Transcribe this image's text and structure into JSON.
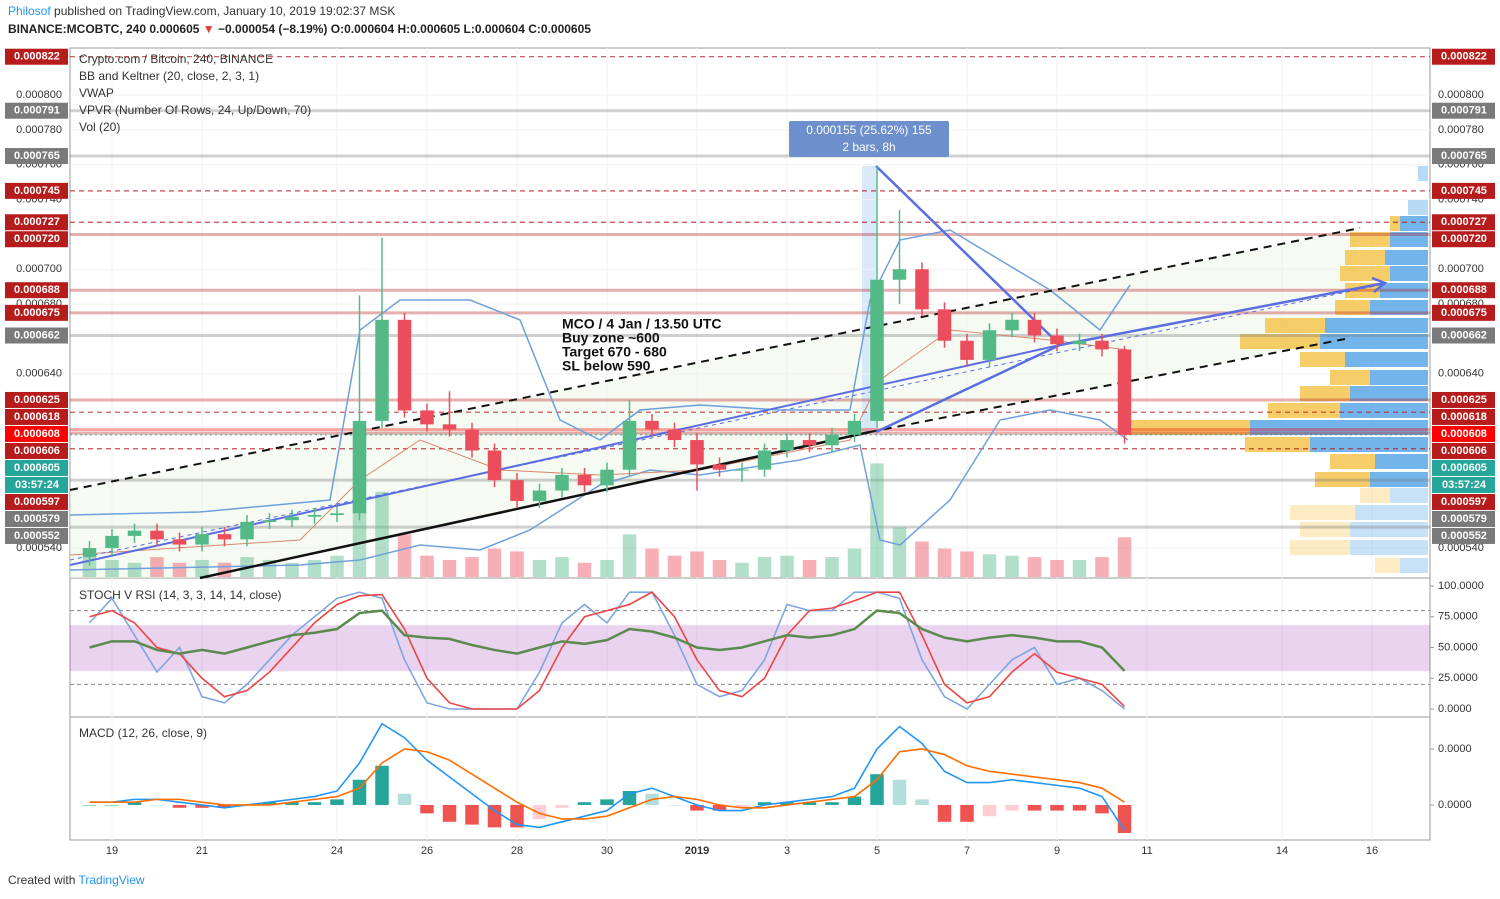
{
  "header": {
    "author": "Philosof",
    "published": "published on TradingView.com, January 10, 2019 19:02:37 MSK",
    "symbol": "BINANCE:MCOBTC, 240",
    "last": "0.000605",
    "change": "−0.000054 (−8.19%)",
    "ohlc": "O:0.000604 H:0.000605 L:0.000604 C:0.000605"
  },
  "legend": [
    "Crypto.com / Bitcoin, 240, BINANCE",
    "BB and Keltner (20, close, 2, 3, 1)",
    "VWAP",
    "VPVR (Number Of Rows, 24, Up/Down, 70)",
    "Vol (20)"
  ],
  "drawings": {
    "measure": [
      "0.000155 (25.62%) 155",
      "2 bars, 8h"
    ],
    "idea": [
      "MCO / 4 Jan / 13.50 UTC",
      "Buy zone ~600",
      "Target 670 - 680",
      "SL below 590"
    ]
  },
  "footer": {
    "text": "Created with",
    "brand": "TradingView"
  },
  "chart_data": [
    {
      "type": "candlestick",
      "up_color": "#53b987",
      "down_color": "#eb4d5c",
      "categories": [
        null,
        "19",
        null,
        null,
        null,
        "21",
        null,
        null,
        null,
        null,
        null,
        "24",
        null,
        null,
        null,
        "26",
        null,
        null,
        null,
        "28",
        null,
        null,
        null,
        "30",
        null,
        null,
        null,
        "2019",
        null,
        null,
        null,
        "3",
        null,
        null,
        null,
        "5",
        null,
        null,
        null,
        "7",
        null,
        null,
        null,
        "9",
        null,
        null,
        null,
        "11",
        null,
        null,
        null,
        null,
        null,
        "14",
        null,
        null,
        null,
        "16",
        null,
        null
      ],
      "open": [
        0.000535,
        0.00054,
        0.000547,
        0.00055,
        0.000545,
        0.000542,
        0.000548,
        0.000545,
        0.000555,
        0.000556,
        0.000558,
        0.000559,
        0.00056,
        0.000613,
        0.000671,
        0.000619,
        0.000611,
        0.000608,
        0.000596,
        0.000579,
        0.000567,
        0.000573,
        0.000582,
        0.000576,
        0.000585,
        0.000613,
        0.000608,
        0.000602,
        0.000588,
        0.000585,
        0.000585,
        0.000596,
        0.000602,
        0.000599,
        0.000605,
        0.000613,
        0.000694,
        0.0007,
        0.000677,
        0.000659,
        0.000648,
        0.000665,
        0.000671,
        0.000662,
        0.000657,
        0.000659,
        0.000654,
        null,
        null,
        null,
        null,
        null,
        null,
        null,
        null,
        null,
        null,
        null,
        null,
        null
      ],
      "high": [
        0.000544,
        0.000551,
        0.000554,
        0.000554,
        0.000549,
        0.000552,
        0.000552,
        0.000559,
        0.00056,
        0.000562,
        0.000563,
        0.000564,
        0.000685,
        0.000718,
        0.000675,
        0.000623,
        0.00063,
        0.000612,
        0.0006,
        0.000583,
        0.000577,
        0.000586,
        0.000586,
        0.000589,
        0.000625,
        0.000617,
        0.000612,
        0.000606,
        0.000592,
        0.000589,
        0.0006,
        0.000606,
        0.000606,
        0.000609,
        0.000617,
        0.000759,
        0.000734,
        0.000704,
        0.000681,
        0.000663,
        0.000669,
        0.000675,
        0.000675,
        0.000666,
        0.000663,
        0.000663,
        0.000656,
        null,
        null,
        null,
        null,
        null,
        null,
        null,
        null,
        null,
        null,
        null,
        null,
        null
      ],
      "low": [
        0.00053,
        0.000536,
        0.000543,
        0.000541,
        0.000538,
        0.000538,
        0.000541,
        0.000541,
        0.000551,
        0.000552,
        0.000554,
        0.000555,
        0.000556,
        0.000609,
        0.000615,
        0.000607,
        0.000604,
        0.000592,
        0.000575,
        0.000563,
        0.000563,
        0.000569,
        0.000572,
        0.000572,
        0.000581,
        0.000604,
        0.000598,
        0.000573,
        0.000581,
        0.000578,
        0.000581,
        0.000592,
        0.000595,
        0.000595,
        0.000601,
        0.000609,
        0.00068,
        0.000673,
        0.000655,
        0.000644,
        0.000644,
        0.000661,
        0.000658,
        0.000653,
        0.000653,
        0.00065,
        0.0006,
        null,
        null,
        null,
        null,
        null,
        null,
        null,
        null,
        null,
        null,
        null,
        null,
        null
      ],
      "close": [
        0.00054,
        0.000547,
        0.00055,
        0.000545,
        0.000542,
        0.000548,
        0.000545,
        0.000555,
        0.000556,
        0.000558,
        0.000559,
        0.00056,
        0.000613,
        0.000671,
        0.000619,
        0.000611,
        0.000608,
        0.000596,
        0.000579,
        0.000567,
        0.000573,
        0.000582,
        0.000576,
        0.000585,
        0.000613,
        0.000608,
        0.000602,
        0.000588,
        0.000585,
        0.000585,
        0.000596,
        0.000602,
        0.000599,
        0.000605,
        0.000613,
        0.000694,
        0.0007,
        0.000677,
        0.000659,
        0.000648,
        0.000665,
        0.000671,
        0.000662,
        0.000657,
        0.000659,
        0.000654,
        0.000605,
        null,
        null,
        null,
        null,
        null,
        null,
        null,
        null,
        null,
        null,
        null,
        null,
        null
      ],
      "volume": [
        15,
        12,
        10,
        14,
        10,
        12,
        10,
        14,
        12,
        10,
        12,
        15,
        100,
        60,
        30,
        15,
        12,
        14,
        20,
        18,
        12,
        14,
        10,
        12,
        30,
        20,
        15,
        18,
        12,
        10,
        14,
        15,
        12,
        14,
        20,
        80,
        35,
        25,
        20,
        18,
        16,
        15,
        14,
        12,
        12,
        14,
        28,
        null,
        null,
        null,
        null,
        null,
        null,
        null,
        null,
        null,
        null,
        null,
        null,
        null
      ],
      "ylim": [
        0.0005234,
        0.000827
      ],
      "yticks": [
        {
          "value": 0.0008,
          "label": "0.000800"
        },
        {
          "value": 0.00078,
          "label": "0.000780"
        },
        {
          "value": 0.00076,
          "label": "0.000760"
        },
        {
          "value": 0.00074,
          "label": "0.000740"
        },
        {
          "value": 0.0007,
          "label": "0.000700"
        },
        {
          "value": 0.00068,
          "label": "0.000680"
        },
        {
          "value": 0.00064,
          "label": "0.000640"
        },
        {
          "value": 0.00054,
          "label": "0.000540"
        }
      ],
      "levels": [
        {
          "value": 0.000822,
          "label": "0.000822",
          "color": "#b71c1c",
          "style": "dashed"
        },
        {
          "value": 0.000791,
          "label": "0.000791",
          "color": "#7a7a7a",
          "style": "solid"
        },
        {
          "value": 0.000765,
          "label": "0.000765",
          "color": "#7a7a7a",
          "style": "solid"
        },
        {
          "value": 0.000745,
          "label": "0.000745",
          "color": "#b71c1c",
          "style": "dashed"
        },
        {
          "value": 0.000727,
          "label": "0.000727",
          "color": "#b71c1c",
          "style": "dashed"
        },
        {
          "value": 0.00072,
          "label": "0.000720",
          "color": "#b71c1c",
          "style": "solid"
        },
        {
          "value": 0.000688,
          "label": "0.000688",
          "color": "#b71c1c",
          "style": "solid"
        },
        {
          "value": 0.000675,
          "label": "0.000675",
          "color": "#b71c1c",
          "style": "solid"
        },
        {
          "value": 0.000662,
          "label": "0.000662",
          "color": "#7a7a7a",
          "style": "solid"
        },
        {
          "value": 0.000625,
          "label": "0.000625",
          "color": "#b71c1c",
          "style": "solid"
        },
        {
          "value": 0.000618,
          "label": "0.000618",
          "color": "#b71c1c",
          "style": "dashed"
        },
        {
          "value": 0.000608,
          "label": "0.000608",
          "color": "#ff0000",
          "style": "solid"
        },
        {
          "value": 0.000606,
          "label": "0.000606",
          "color": "#b71c1c",
          "style": "solid"
        },
        {
          "value": 0.000605,
          "label": "0.000605",
          "color": "#26a69a",
          "style": "dotted",
          "countdown": "03:57:24"
        },
        {
          "value": 0.000597,
          "label": "0.000597",
          "color": "#b71c1c",
          "style": "dashed"
        },
        {
          "value": 0.000579,
          "label": "0.000579",
          "color": "#7a7a7a",
          "style": "solid"
        },
        {
          "value": 0.000552,
          "label": "0.000552",
          "color": "#7a7a7a",
          "style": "solid"
        }
      ]
    },
    {
      "type": "line",
      "title": "STOCH V RSI (14, 3, 3, 14, 14, close)",
      "series": [
        {
          "color": "#7ea6e0",
          "values": [
            70,
            90,
            60,
            30,
            50,
            10,
            5,
            20,
            40,
            60,
            75,
            90,
            95,
            90,
            40,
            5,
            0,
            0,
            0,
            0,
            30,
            70,
            85,
            70,
            95,
            95,
            60,
            20,
            10,
            15,
            40,
            85,
            80,
            80,
            95,
            95,
            90,
            40,
            10,
            0,
            20,
            40,
            50,
            20,
            25,
            15,
            0,
            null,
            null,
            null,
            null,
            null,
            null,
            null,
            null,
            null,
            null,
            null,
            null,
            null
          ]
        },
        {
          "color": "#ef4444",
          "values": [
            75,
            80,
            70,
            50,
            45,
            25,
            10,
            15,
            30,
            50,
            70,
            85,
            92,
            93,
            65,
            25,
            5,
            0,
            0,
            0,
            15,
            50,
            75,
            80,
            85,
            95,
            75,
            40,
            15,
            10,
            25,
            60,
            80,
            82,
            88,
            95,
            95,
            60,
            20,
            5,
            10,
            30,
            45,
            30,
            25,
            20,
            2,
            null,
            null,
            null,
            null,
            null,
            null,
            null,
            null,
            null,
            null,
            null,
            null,
            null
          ]
        },
        {
          "color": "#5b8a4e",
          "values": [
            50,
            55,
            55,
            48,
            45,
            48,
            45,
            50,
            55,
            60,
            62,
            65,
            78,
            80,
            60,
            58,
            57,
            52,
            48,
            45,
            50,
            55,
            53,
            56,
            65,
            63,
            58,
            50,
            48,
            50,
            55,
            60,
            58,
            60,
            65,
            80,
            78,
            65,
            58,
            55,
            58,
            60,
            58,
            55,
            55,
            50,
            31,
            null,
            null,
            null,
            null,
            null,
            null,
            null,
            null,
            null,
            null,
            null,
            null,
            null
          ]
        }
      ],
      "band": [
        31,
        68
      ],
      "guides": [
        80,
        20
      ],
      "ylim": [
        -5.7,
        106.5
      ],
      "yticks": [
        {
          "value": 100,
          "label": "100.0000"
        },
        {
          "value": 75,
          "label": "75.0000"
        },
        {
          "value": 50,
          "label": "50.0000"
        },
        {
          "value": 25,
          "label": "25.0000"
        },
        {
          "value": 0,
          "label": "0.0000"
        }
      ]
    },
    {
      "type": "line",
      "title": "MACD (12, 26, close, 9)",
      "series": [
        {
          "color": "#2196f3",
          "values": [
            1e-06,
            1e-06,
            2e-06,
            2e-06,
            1e-06,
            0,
            -1e-06,
            0,
            1e-06,
            2e-06,
            3e-06,
            5e-06,
            1.5e-05,
            2.9e-05,
            2.4e-05,
            1.6e-05,
            1e-05,
            4e-06,
            -2e-06,
            -7e-06,
            -8e-06,
            -6e-06,
            -4e-06,
            -2e-06,
            4e-06,
            6e-06,
            3e-06,
            0,
            -2e-06,
            -2e-06,
            0,
            1e-06,
            2e-06,
            3e-06,
            6e-06,
            2e-05,
            2.8e-05,
            2.2e-05,
            1.2e-05,
            8e-06,
            8e-06,
            9e-06,
            8e-06,
            7e-06,
            6e-06,
            3e-06,
            -9e-06,
            null,
            null,
            null,
            null,
            null,
            null,
            null,
            null,
            null,
            null,
            null,
            null,
            null
          ]
        },
        {
          "color": "#ff6d00",
          "values": [
            1e-06,
            1e-06,
            1e-06,
            2e-06,
            2e-06,
            1e-06,
            0,
            0,
            0,
            1e-06,
            2e-06,
            3e-06,
            6e-06,
            1.5e-05,
            2e-05,
            1.9e-05,
            1.6e-05,
            1.1e-05,
            6e-06,
            1e-06,
            -3e-06,
            -5e-06,
            -5e-06,
            -4e-06,
            -1e-06,
            2e-06,
            3e-06,
            2e-06,
            0,
            -1e-06,
            -1e-06,
            0,
            1e-06,
            2e-06,
            3e-06,
            9e-06,
            1.9e-05,
            2e-05,
            1.8e-05,
            1.4e-05,
            1.2e-05,
            1.1e-05,
            1e-05,
            9e-06,
            8e-06,
            6e-06,
            1e-06,
            null,
            null,
            null,
            null,
            null,
            null,
            null,
            null,
            null,
            null,
            null,
            null,
            null
          ]
        }
      ],
      "histogram": [
        0,
        0,
        1e-06,
        0,
        -1e-06,
        -1e-06,
        -1e-06,
        0,
        1e-06,
        1e-06,
        1e-06,
        2e-06,
        9e-06,
        1.4e-05,
        4e-06,
        -3e-06,
        -6e-06,
        -7e-06,
        -8e-06,
        -8e-06,
        -5e-06,
        -1e-06,
        1e-06,
        2e-06,
        5e-06,
        4e-06,
        0,
        -2e-06,
        -2e-06,
        -1e-06,
        1e-06,
        1e-06,
        1e-06,
        1e-06,
        3e-06,
        1.1e-05,
        9e-06,
        2e-06,
        -6e-06,
        -6e-06,
        -4e-06,
        -2e-06,
        -2e-06,
        -2e-06,
        -2e-06,
        -3e-06,
        -1e-05,
        null,
        null,
        null,
        null,
        null,
        null,
        null,
        null,
        null,
        null,
        null,
        null,
        null
      ],
      "ylim": [
        -1.25e-05,
        3.14e-05
      ],
      "yticks": [
        {
          "value": 2e-05,
          "label": "0.0000"
        },
        {
          "value": 0,
          "label": "0.0000"
        }
      ]
    }
  ]
}
